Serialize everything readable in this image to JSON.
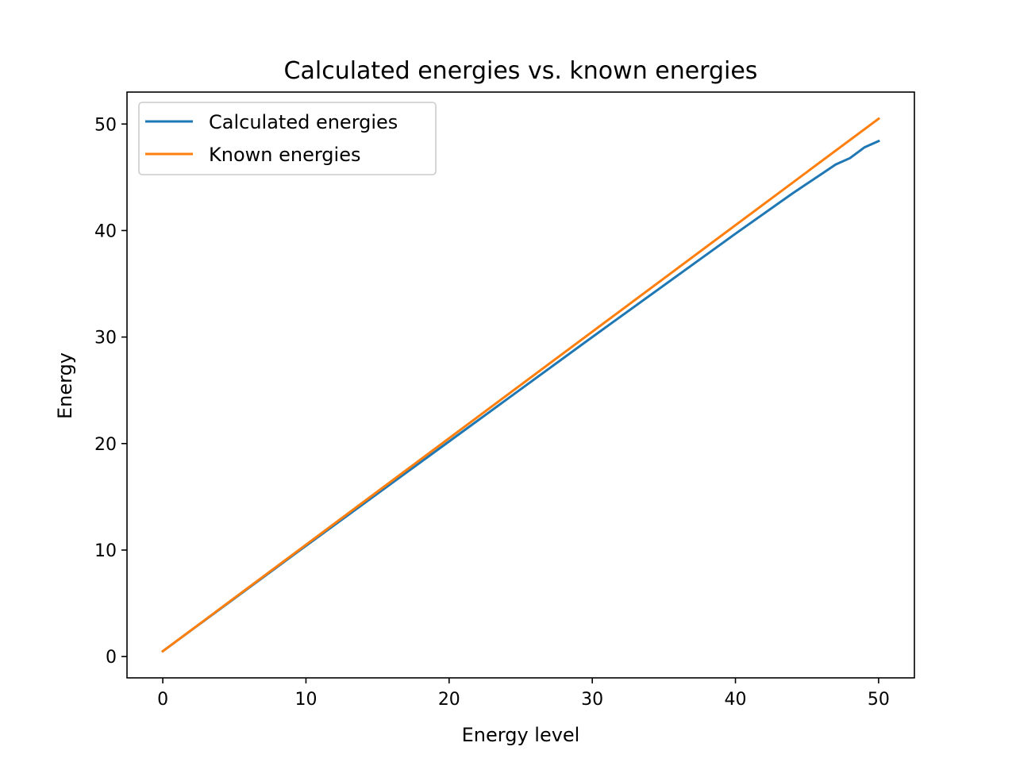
{
  "chart_data": {
    "type": "line",
    "title": "Calculated energies vs. known energies",
    "xlabel": "Energy level",
    "ylabel": "Energy",
    "xlim": [
      -2.5,
      52.5
    ],
    "ylim": [
      -2.0,
      53.0
    ],
    "xticks": [
      0,
      10,
      20,
      30,
      40,
      50
    ],
    "yticks": [
      0,
      10,
      20,
      30,
      40,
      50
    ],
    "grid": false,
    "legend_position": "upper-left",
    "series": [
      {
        "name": "Calculated energies",
        "color": "#1f77b4",
        "x": [
          0,
          10,
          20,
          30,
          40,
          44,
          45,
          46,
          47,
          48,
          49,
          50
        ],
        "y": [
          0.5,
          10.4,
          20.2,
          30.0,
          39.7,
          43.5,
          44.4,
          45.3,
          46.2,
          46.8,
          47.8,
          48.4
        ]
      },
      {
        "name": "Known energies",
        "color": "#ff7f0e",
        "x": [
          0,
          50
        ],
        "y": [
          0.5,
          50.5
        ]
      }
    ]
  }
}
